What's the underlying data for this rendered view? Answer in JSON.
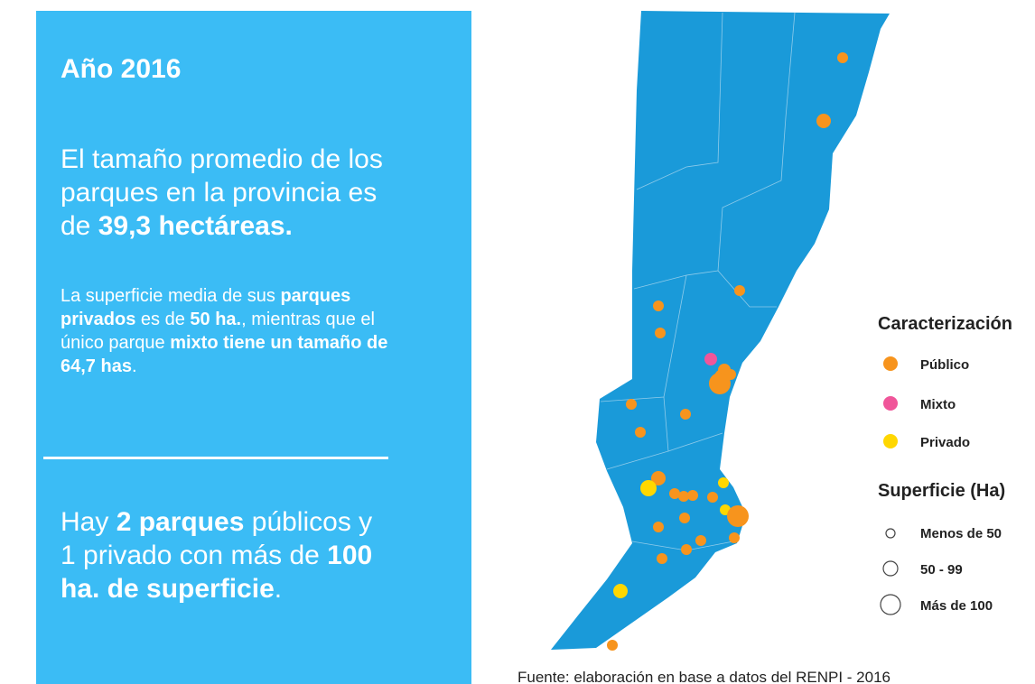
{
  "panel": {
    "title": "Año 2016",
    "lead": [
      "El tamaño promedio de los parques en la provincia es de ",
      "39,3 hectáreas."
    ],
    "detail": [
      "La superficie media de sus ",
      "parques privados",
      " es de ",
      "50 ha.",
      ", mientras que el único parque ",
      "mixto tiene un tamaño de 64,7 has",
      "."
    ],
    "closing": [
      "Hay ",
      "2 parques",
      " públicos y 1 privado con más de ",
      "100 ha. de superficie",
      "."
    ]
  },
  "legend": {
    "type_title": "Caracterización",
    "types": [
      "Público",
      "Mixto",
      "Privado"
    ],
    "size_title": "Superficie (Ha)",
    "sizes": [
      "Menos de 50",
      "50 - 99",
      "Más de 100"
    ]
  },
  "source": "Fuente: elaboración en base a datos del RENPI - 2016"
}
